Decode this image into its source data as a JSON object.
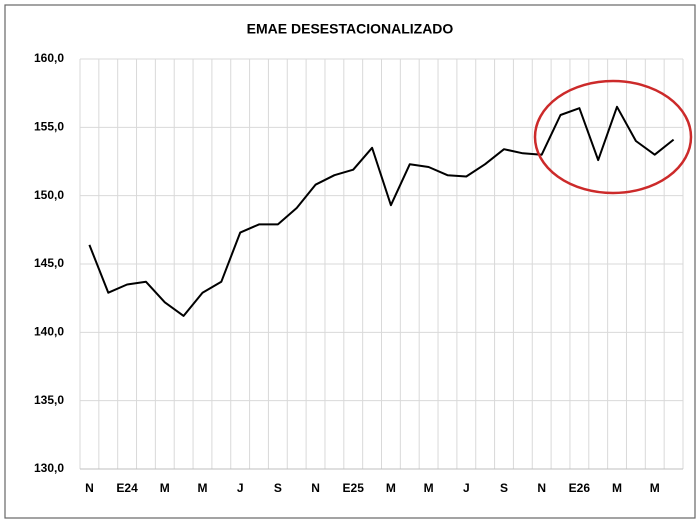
{
  "chart_data": {
    "type": "line",
    "title": "EMAE DESESTACIONALIZADO",
    "categories": [
      "N",
      null,
      "E24",
      null,
      "M",
      null,
      "M",
      null,
      "J",
      null,
      "S",
      null,
      "N",
      null,
      "E25",
      null,
      "M",
      null,
      "M",
      null,
      "J",
      null,
      "S",
      null,
      "N",
      null,
      "E26",
      null,
      "M",
      null,
      "M",
      null
    ],
    "series": [
      {
        "name": "EMAE",
        "color": "#000000",
        "values": [
          146.4,
          142.9,
          143.5,
          143.7,
          142.2,
          141.2,
          142.9,
          143.7,
          147.3,
          147.9,
          147.9,
          149.1,
          150.8,
          151.5,
          151.9,
          153.5,
          149.3,
          152.3,
          152.1,
          151.5,
          151.4,
          152.3,
          153.4,
          153.1,
          153.0,
          155.9,
          156.4,
          152.6,
          156.5,
          154.0,
          153.0,
          154.1
        ]
      }
    ],
    "ylim": [
      130,
      160
    ],
    "yticks": [
      {
        "value": 130,
        "label": "130,0"
      },
      {
        "value": 135,
        "label": "135,0"
      },
      {
        "value": 140,
        "label": "140,0"
      },
      {
        "value": 145,
        "label": "145,0"
      },
      {
        "value": 150,
        "label": "150,0"
      },
      {
        "value": 155,
        "label": "155,0"
      },
      {
        "value": 160,
        "label": "160,0"
      }
    ],
    "grid": true
  }
}
